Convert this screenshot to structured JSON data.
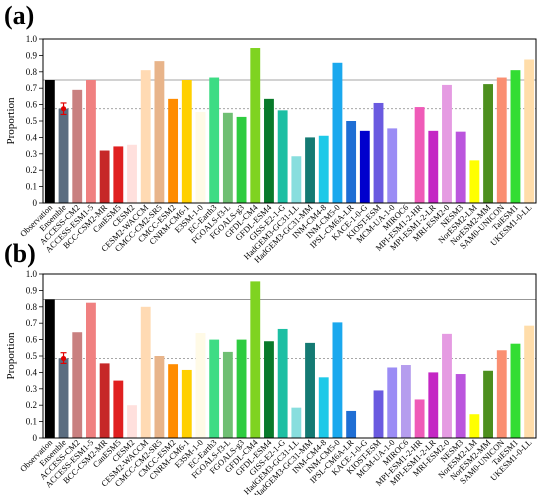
{
  "chart_data": [
    {
      "type": "bar",
      "panel_label": "(a)",
      "ylabel": "Proportion",
      "ylim": [
        0,
        1.0
      ],
      "yticks": [
        "0",
        "0.1",
        "0.2",
        "0.3",
        "0.4",
        "0.5",
        "0.6",
        "0.7",
        "0.8",
        "0.9",
        "1.0"
      ],
      "reference_lines": {
        "observation_solid": 0.75,
        "ensemble_dashed": 0.575
      },
      "ensemble_error": [
        0.54,
        0.61
      ],
      "values": [
        0.75,
        0.575,
        0.69,
        0.75,
        0.32,
        0.345,
        0.355,
        0.81,
        0.865,
        0.635,
        0.75,
        0.555,
        0.765,
        0.55,
        0.525,
        0.945,
        0.635,
        0.565,
        0.285,
        0.4,
        0.41,
        0.855,
        0.5,
        0.44,
        0.61,
        0.455,
        0.0,
        0.585,
        0.44,
        0.72,
        0.435,
        0.26,
        0.725,
        0.765,
        0.81,
        0.875
      ]
    },
    {
      "type": "bar",
      "panel_label": "(b)",
      "ylabel": "Proportion",
      "ylim": [
        0,
        1.0
      ],
      "yticks": [
        "0",
        "0.1",
        "0.2",
        "0.3",
        "0.4",
        "0.5",
        "0.6",
        "0.7",
        "0.8",
        "0.9",
        "1.0"
      ],
      "reference_lines": {
        "observation_solid": 0.845,
        "ensemble_dashed": 0.485
      },
      "ensemble_error": [
        0.455,
        0.52
      ],
      "values": [
        0.845,
        0.485,
        0.645,
        0.825,
        0.455,
        0.35,
        0.2,
        0.8,
        0.5,
        0.45,
        0.415,
        0.64,
        0.6,
        0.525,
        0.6,
        0.955,
        0.59,
        0.665,
        0.185,
        0.58,
        0.37,
        0.705,
        0.165,
        0.0,
        0.29,
        0.43,
        0.445,
        0.235,
        0.4,
        0.635,
        0.39,
        0.145,
        0.41,
        0.535,
        0.575,
        0.685
      ]
    }
  ],
  "categories": [
    "Observation",
    "Ensemble",
    "ACCESS-CM2",
    "ACCESS-ESM1-5",
    "BCC-CSM2-MR",
    "CanESM5",
    "CESM2",
    "CESM2-WACCM",
    "CMCC-CM2-SR5",
    "CMCC-ESM2",
    "CNRM-CM6-1",
    "E3SM-1-0",
    "EC-Earth3",
    "FGOALS-f3-L",
    "FGOALS-g3",
    "GFDL-CM4",
    "GFDL-ESM4",
    "GISS-E2-1-G",
    "HadGEM3-GC31-LL",
    "HadGEM3-GC31-MM",
    "INM-CM4-8",
    "INM-CM5-0",
    "IPSL-CM6A-LR",
    "KACE-1-0-G",
    "KIOST-ESM",
    "MCM-UA-1-0",
    "MIROC6",
    "MPI-ESM1-2-HR",
    "MPI-ESM1-2-LR",
    "MRI-ESM2-0",
    "NESM3",
    "NorESM2-LM",
    "NorESM2-MM",
    "SAM0-UNICON",
    "TaiESM1",
    "UKESM1-0-LL"
  ],
  "colors": [
    "#000000",
    "#5b6d80",
    "#c98080",
    "#f08080",
    "#c62828",
    "#e02020",
    "#ffe0dd",
    "#ffdab3",
    "#e8b48a",
    "#ff8c00",
    "#ffd000",
    "#fffae6",
    "#3ddc84",
    "#6fbf73",
    "#2ecc40",
    "#7fd321",
    "#087a2a",
    "#1dbfa3",
    "#88dede",
    "#147a73",
    "#1ec9e8",
    "#1aa8ee",
    "#1f6ed4",
    "#0000cd",
    "#6a5ae0",
    "#9b8cf5",
    "#b59dee",
    "#ef5bb8",
    "#c427c4",
    "#e59be2",
    "#bb55dd",
    "#ffff00",
    "#4d8f1e",
    "#fa8f72",
    "#33dd33",
    "#ffddaa"
  ]
}
